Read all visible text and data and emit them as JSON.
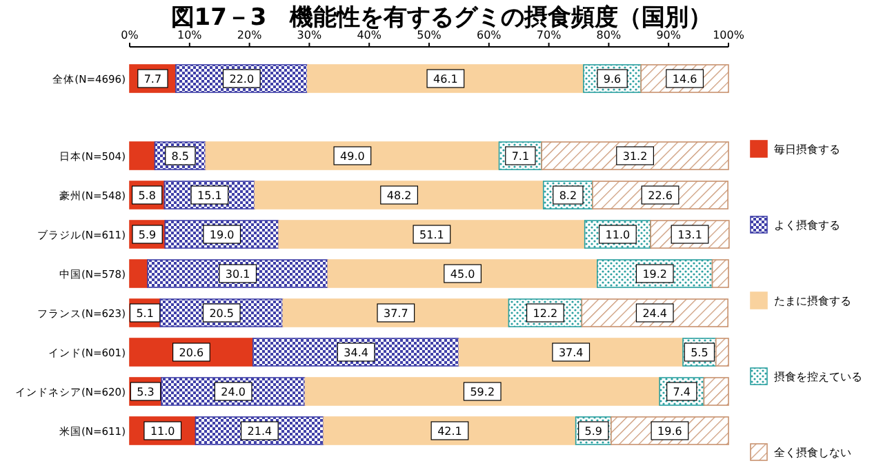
{
  "chart_data": {
    "type": "bar",
    "orientation": "horizontal",
    "stacked": true,
    "title": "図17－3　機能性を有するグミの摂食頻度（国別）",
    "categories": [
      "全体(N=4696)",
      "日本(N=504)",
      "豪州(N=548)",
      "ブラジル(N=611)",
      "中国(N=578)",
      "フランス(N=623)",
      "インド(N=601)",
      "インドネシア(N=620)",
      "米国(N=611)"
    ],
    "series": [
      {
        "name": "毎日摂食する",
        "color": "#e23a1c",
        "values": [
          7.7,
          4.2,
          5.8,
          5.9,
          3.0,
          5.1,
          20.6,
          5.3,
          11.0
        ],
        "value_labels": [
          "7.7",
          null,
          "5.8",
          "5.9",
          null,
          "5.1",
          "20.6",
          "5.3",
          "11.0"
        ]
      },
      {
        "name": "よく摂食する",
        "color": "#4040a8",
        "values": [
          22.0,
          8.5,
          15.1,
          19.0,
          30.1,
          20.5,
          34.4,
          24.0,
          21.4
        ],
        "value_labels": [
          "22.0",
          "8.5",
          "15.1",
          "19.0",
          "30.1",
          "20.5",
          "34.4",
          "24.0",
          "21.4"
        ]
      },
      {
        "name": "たまに摂食する",
        "color": "#f9d29e",
        "values": [
          46.1,
          49.0,
          48.2,
          51.1,
          45.0,
          37.7,
          37.4,
          59.2,
          42.1
        ],
        "value_labels": [
          "46.1",
          "49.0",
          "48.2",
          "51.1",
          "45.0",
          "37.7",
          "37.4",
          "59.2",
          "42.1"
        ]
      },
      {
        "name": "摂食を控えている",
        "color": "#2aa0a0",
        "values": [
          9.6,
          7.1,
          8.2,
          11.0,
          19.2,
          12.2,
          5.5,
          7.4,
          5.9
        ],
        "value_labels": [
          "9.6",
          "7.1",
          "8.2",
          "11.0",
          "19.2",
          "12.2",
          "5.5",
          "7.4",
          "5.9"
        ]
      },
      {
        "name": "全く摂食しない",
        "color": "#c8926e",
        "values": [
          14.6,
          31.2,
          22.6,
          13.1,
          2.7,
          24.4,
          2.1,
          4.1,
          19.6
        ],
        "value_labels": [
          "14.6",
          "31.2",
          "22.6",
          "13.1",
          null,
          "24.4",
          null,
          null,
          "19.6"
        ]
      }
    ],
    "xlim": [
      0,
      100
    ],
    "xticks": [
      {
        "value": 0,
        "label": "0%"
      },
      {
        "value": 10,
        "label": "10%"
      },
      {
        "value": 20,
        "label": "20%"
      },
      {
        "value": 30,
        "label": "30%"
      },
      {
        "value": 40,
        "label": "40%"
      },
      {
        "value": 50,
        "label": "50%"
      },
      {
        "value": 60,
        "label": "60%"
      },
      {
        "value": 70,
        "label": "70%"
      },
      {
        "value": 80,
        "label": "80%"
      },
      {
        "value": 90,
        "label": "90%"
      },
      {
        "value": 100,
        "label": "100%"
      }
    ],
    "legend": "right"
  }
}
